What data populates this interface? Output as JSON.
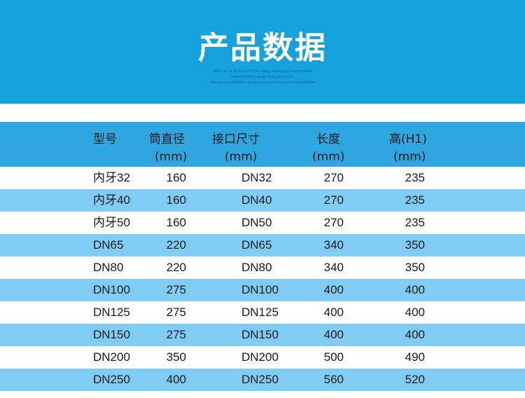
{
  "banner": {
    "title": "产品数据",
    "subtitle_lines": [
      "What can he do for you? Both energy saving and environmental",
      "protectionBoth energy saving and enviro",
      "nmental protectionBoth energy saving and environmental protection"
    ]
  },
  "table": {
    "headers": [
      {
        "line1": "型号",
        "line2": ""
      },
      {
        "line1": "筒直径",
        "line2": "(mm)"
      },
      {
        "line1": "接口尺寸",
        "line2": "(mm)"
      },
      {
        "line1": "长度",
        "line2": "(mm)"
      },
      {
        "line1": "高(H1)",
        "line2": "(mm)"
      }
    ],
    "rows": [
      [
        "内牙32",
        "160",
        "DN32",
        "270",
        "235"
      ],
      [
        "内牙40",
        "160",
        "DN40",
        "270",
        "235"
      ],
      [
        "内牙50",
        "160",
        "DN50",
        "270",
        "235"
      ],
      [
        "DN65",
        "220",
        "DN65",
        "340",
        "350"
      ],
      [
        "DN80",
        "220",
        "DN80",
        "340",
        "350"
      ],
      [
        "DN100",
        "275",
        "DN100",
        "400",
        "400"
      ],
      [
        "DN125",
        "275",
        "DN125",
        "400",
        "400"
      ],
      [
        "DN150",
        "275",
        "DN150",
        "400",
        "400"
      ],
      [
        "DN200",
        "350",
        "DN200",
        "500",
        "490"
      ],
      [
        "DN250",
        "400",
        "DN250",
        "560",
        "520"
      ]
    ]
  },
  "colors": {
    "banner": "#15a1dc",
    "header": "#2ea7e0",
    "alt_row": "#7fcdf4"
  }
}
